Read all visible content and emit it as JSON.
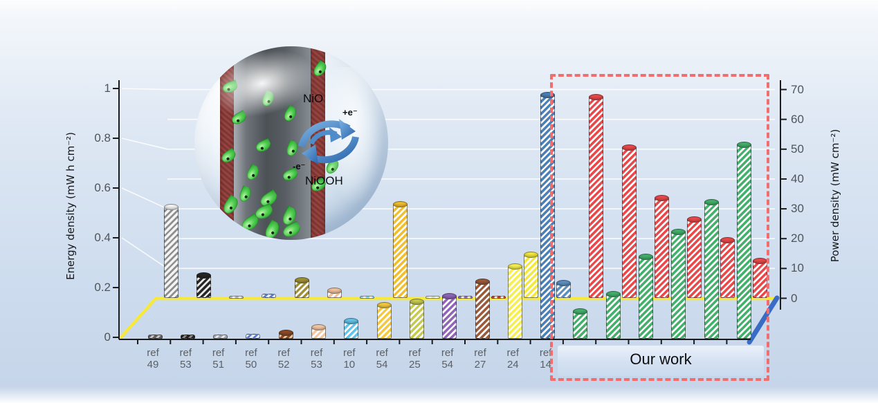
{
  "inset": {
    "label_nio": "NiO",
    "label_niooh": "NiOOH",
    "label_plus_e": "+e⁻",
    "label_minus_e": "-e⁻"
  },
  "chart_data": {
    "type": "bar",
    "title": "",
    "left_axis": {
      "label": "Energy density (mW h cm⁻²)",
      "range": [
        0,
        1
      ],
      "ticks": [
        0,
        0.2,
        0.4,
        0.6,
        0.8,
        1
      ]
    },
    "right_axis": {
      "label": "Power density (mW cm⁻²)",
      "range": [
        0,
        70
      ],
      "ticks": [
        0,
        10,
        20,
        30,
        40,
        50,
        60,
        70
      ]
    },
    "group_label": "Our work",
    "series": [
      {
        "name": "Energy density (mW h cm⁻²)",
        "axis": "left",
        "row": "front"
      },
      {
        "name": "Power density (mW cm⁻²)",
        "axis": "right",
        "row": "back"
      }
    ],
    "items": [
      {
        "label": "ref 49",
        "energy": 0.01,
        "power": 31,
        "energy_fill": "#5f5f63",
        "energy_stripe": "#c8c8c8",
        "power_fill": "#f4f4f4",
        "power_stripe": "#8f8f8f"
      },
      {
        "label": "ref 53",
        "energy": 0.01,
        "power": 8,
        "energy_fill": "#1f1f1f",
        "energy_stripe": "#8a8a8a",
        "power_fill": "#262626",
        "power_stripe": "#e8e8e8"
      },
      {
        "label": "ref 51",
        "energy": 0.01,
        "power": 0.5,
        "energy_fill": "#9aa2ac",
        "energy_stripe": "#e8e8e8",
        "power_fill": "#b9c0c8",
        "power_stripe": "#ffffff"
      },
      {
        "label": "ref 50",
        "energy": 0.015,
        "power": 1.5,
        "energy_fill": "#e8eefb",
        "energy_stripe": "#5b7cc8",
        "power_fill": "#e8eefb",
        "power_stripe": "#5b7cc8"
      },
      {
        "label": "ref 52",
        "energy": 0.025,
        "power": 6.5,
        "energy_fill": "#8c4a26",
        "energy_stripe": "#e8c9a8",
        "power_fill": "#9f9037",
        "power_stripe": "#ffffff"
      },
      {
        "label": "ref 53",
        "energy": 0.045,
        "power": 3,
        "energy_fill": "#f3c9a5",
        "energy_stripe": "#ffffff",
        "power_fill": "#f0c3a0",
        "power_stripe": "#ffffff"
      },
      {
        "label": "ref 10",
        "energy": 0.07,
        "power": 0.8,
        "energy_fill": "#62c3ea",
        "energy_stripe": "#ffffff",
        "power_fill": "#9ad8f0",
        "power_stripe": "#ffffff"
      },
      {
        "label": "ref 54",
        "energy": 0.135,
        "power": 32,
        "energy_fill": "#f4c93f",
        "energy_stripe": "#ffffff",
        "power_fill": "#f0be2e",
        "power_stripe": "#ffffff"
      },
      {
        "label": "ref 25",
        "energy": 0.15,
        "power": 0.7,
        "energy_fill": "#c6ca51",
        "energy_stripe": "#ffffff",
        "power_fill": "#dfead2",
        "power_stripe": "#ffffff"
      },
      {
        "label": "ref 54",
        "energy": 0.17,
        "power": 0.5,
        "energy_fill": "#9065ba",
        "energy_stripe": "#ffffff",
        "power_fill": "#9a74c2",
        "power_stripe": "#ffffff"
      },
      {
        "label": "ref 27",
        "energy": 0.23,
        "power": 0.5,
        "energy_fill": "#9a5b3a",
        "energy_stripe": "#ffffff",
        "power_fill": "#cf4333",
        "power_stripe": "#ffffff"
      },
      {
        "label": "ref 24",
        "energy": 0.29,
        "power": 15,
        "energy_fill": "#f7ef52",
        "energy_stripe": "#ffffff",
        "power_fill": "#f3e83d",
        "power_stripe": "#ffffff"
      },
      {
        "label": "ref 14",
        "energy": 0.98,
        "power": 5.5,
        "energy_fill": "#4a80b6",
        "energy_stripe": "#ffffff",
        "power_fill": "#5d8fc0",
        "power_stripe": "#ffffff"
      },
      {
        "label": "",
        "energy": 0.11,
        "power": 68,
        "energy_fill": "#43b06b",
        "energy_stripe": "#ffffff",
        "power_fill": "#e9494b",
        "power_stripe": "#ffffff"
      },
      {
        "label": "",
        "energy": 0.18,
        "power": 51,
        "energy_fill": "#43b06b",
        "energy_stripe": "#ffffff",
        "power_fill": "#e9494b",
        "power_stripe": "#ffffff"
      },
      {
        "label": "",
        "energy": 0.33,
        "power": 34,
        "energy_fill": "#43b06b",
        "energy_stripe": "#ffffff",
        "power_fill": "#e9494b",
        "power_stripe": "#ffffff"
      },
      {
        "label": "",
        "energy": 0.43,
        "power": 27,
        "energy_fill": "#43b06b",
        "energy_stripe": "#ffffff",
        "power_fill": "#e9494b",
        "power_stripe": "#ffffff"
      },
      {
        "label": "",
        "energy": 0.55,
        "power": 20,
        "energy_fill": "#43b06b",
        "energy_stripe": "#ffffff",
        "power_fill": "#e9494b",
        "power_stripe": "#ffffff"
      },
      {
        "label": "",
        "energy": 0.78,
        "power": 13,
        "energy_fill": "#43b06b",
        "energy_stripe": "#ffffff",
        "power_fill": "#e9494b",
        "power_stripe": "#ffffff"
      }
    ]
  },
  "styles": {
    "highlight_dash": "#f26d6d",
    "back_baseline_yellow": "#f6e93c",
    "right_baseline_blue": "#3a6cc6",
    "our_work_green": "#43b06b",
    "our_work_red": "#e9494b",
    "gridline_white": "#ffffff"
  }
}
